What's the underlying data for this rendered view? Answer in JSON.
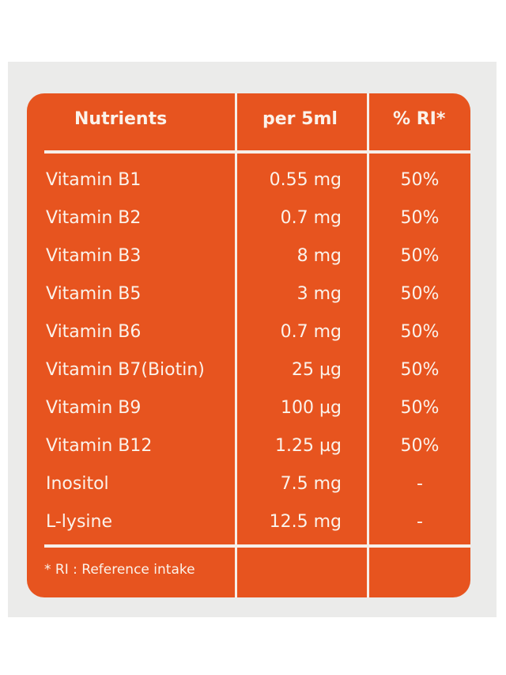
{
  "table": {
    "headers": {
      "nutrients": "Nutrients",
      "amount": "per 5ml",
      "ri": "% RI*"
    },
    "rows": [
      {
        "name": "Vitamin B1",
        "amount": "0.55 mg",
        "ri": "50%"
      },
      {
        "name": "Vitamin B2",
        "amount": "0.7 mg",
        "ri": "50%"
      },
      {
        "name": "Vitamin B3",
        "amount": "8 mg",
        "ri": "50%"
      },
      {
        "name": "Vitamin B5",
        "amount": "3 mg",
        "ri": "50%"
      },
      {
        "name": "Vitamin B6",
        "amount": "0.7 mg",
        "ri": "50%"
      },
      {
        "name": "Vitamin B7(Biotin)",
        "amount": "25 µg",
        "ri": "50%"
      },
      {
        "name": "Vitamin B9",
        "amount": "100 µg",
        "ri": "50%"
      },
      {
        "name": "Vitamin B12",
        "amount": "1.25 µg",
        "ri": "50%"
      },
      {
        "name": "Inositol",
        "amount": "7.5 mg",
        "ri": "-"
      },
      {
        "name": "L-lysine",
        "amount": "12.5 mg",
        "ri": "-"
      }
    ],
    "footnote": "* RI : Reference intake"
  },
  "colors": {
    "panel": "#e7541f",
    "text": "#fbf2ea",
    "background": "#ebebea"
  }
}
